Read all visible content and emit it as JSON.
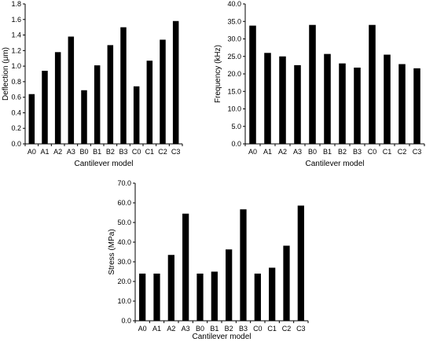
{
  "chart_data": [
    {
      "type": "bar",
      "title": "",
      "categories": [
        "A0",
        "A1",
        "A2",
        "A3",
        "B0",
        "B1",
        "B2",
        "B3",
        "C0",
        "C1",
        "C2",
        "C3"
      ],
      "values": [
        0.64,
        0.94,
        1.18,
        1.38,
        0.69,
        1.01,
        1.27,
        1.5,
        0.74,
        1.07,
        1.34,
        1.58
      ],
      "xlabel": "Cantilever model",
      "ylabel": "Deflection (μm)",
      "ylim": [
        0,
        1.8
      ],
      "ytick_values": [
        0,
        0.2,
        0.4,
        0.6,
        0.8,
        1.0,
        1.2,
        1.4,
        1.6,
        1.8
      ],
      "yticks": [
        "0.0",
        "0.2",
        "0.4",
        "0.6",
        "0.8",
        "1.0",
        "1.2",
        "1.4",
        "1.6",
        "1.8"
      ],
      "color": "#000000",
      "grid": false,
      "legend": "none"
    },
    {
      "type": "bar",
      "title": "",
      "categories": [
        "A0",
        "A1",
        "A2",
        "A3",
        "B0",
        "B1",
        "B2",
        "B3",
        "C0",
        "C1",
        "C2",
        "C3"
      ],
      "values": [
        33.8,
        26.0,
        25.0,
        22.5,
        34.0,
        25.7,
        23.0,
        21.8,
        34.0,
        25.5,
        22.8,
        21.6
      ],
      "xlabel": "Cantilever model",
      "ylabel": "Frequency (kHz)",
      "ylim": [
        0,
        40
      ],
      "ytick_values": [
        0,
        5,
        10,
        15,
        20,
        25,
        30,
        35,
        40
      ],
      "yticks": [
        "0.0",
        "5.0",
        "10.0",
        "15.0",
        "20.0",
        "25.0",
        "30.0",
        "35.0",
        "40.0"
      ],
      "color": "#000000",
      "grid": false,
      "legend": "none"
    },
    {
      "type": "bar",
      "title": "",
      "categories": [
        "A0",
        "A1",
        "A2",
        "A3",
        "B0",
        "B1",
        "B2",
        "B3",
        "C0",
        "C1",
        "C2",
        "C3"
      ],
      "values": [
        24.0,
        24.0,
        33.5,
        54.5,
        24.0,
        25.0,
        36.3,
        56.7,
        24.0,
        27.0,
        38.2,
        58.6
      ],
      "xlabel": "Cantilever model",
      "ylabel": "Stress (MPa)",
      "ylim": [
        0,
        70
      ],
      "ytick_values": [
        0,
        10,
        20,
        30,
        40,
        50,
        60,
        70
      ],
      "yticks": [
        "0.0",
        "10.0",
        "20.0",
        "30.0",
        "40.0",
        "50.0",
        "60.0",
        "70.0"
      ],
      "color": "#000000",
      "grid": false,
      "legend": "none"
    }
  ]
}
